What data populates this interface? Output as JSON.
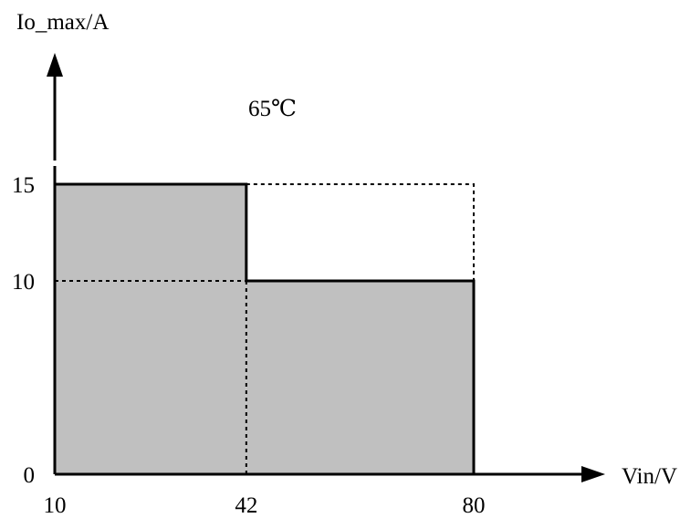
{
  "chart_data": {
    "type": "area",
    "title": "",
    "annotation": "65℃",
    "xlabel": "Vin/V",
    "ylabel": "Io_max/A",
    "x_ticks": [
      "10",
      "42",
      "80"
    ],
    "y_ticks": [
      "0",
      "10",
      "15"
    ],
    "xlim": [
      10,
      88
    ],
    "ylim": [
      0,
      19
    ],
    "steps": [
      {
        "x_start": 10,
        "x_end": 42,
        "y": 15
      },
      {
        "x_start": 42,
        "x_end": 80,
        "y": 10
      }
    ],
    "dashed_region": {
      "x_start": 42,
      "x_end": 80,
      "y": 15
    },
    "dashed_level": {
      "x_start": 10,
      "x_end": 42,
      "y": 10
    },
    "fill_color": "#c0c0c0",
    "line_color": "#000000"
  }
}
